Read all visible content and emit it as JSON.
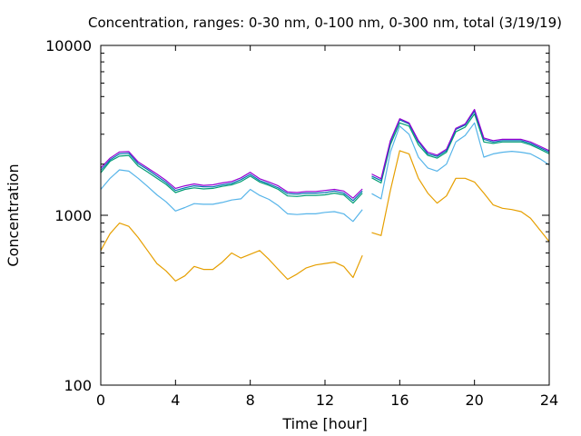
{
  "chart_data": {
    "type": "line",
    "title": "Concentration, ranges: 0-30 nm, 0-100 nm, 0-300 nm, total (3/19/19)",
    "xlabel": "Time [hour]",
    "ylabel": "Concentration",
    "xlim": [
      0,
      24
    ],
    "ylim": [
      100,
      10000
    ],
    "yscale": "log",
    "grid": false,
    "legend": "none",
    "x_ticks": [
      0,
      4,
      8,
      12,
      16,
      20,
      24
    ],
    "x_tick_labels": [
      "0",
      "4",
      "8",
      "12",
      "16",
      "20",
      "24"
    ],
    "y_ticks": [
      100,
      1000,
      10000
    ],
    "y_tick_labels": [
      "100",
      "1000",
      "10000"
    ],
    "gap": [
      14.1,
      14.5
    ],
    "x": [
      0,
      0.5,
      1,
      1.5,
      2,
      2.5,
      3,
      3.5,
      4,
      4.5,
      5,
      5.5,
      6,
      6.5,
      7,
      7.5,
      8,
      8.5,
      9,
      9.5,
      10,
      10.5,
      11,
      11.5,
      12,
      12.5,
      13,
      13.5,
      14,
      14.5,
      15,
      15.5,
      16,
      16.5,
      17,
      17.5,
      18,
      18.5,
      19,
      19.5,
      20,
      20.5,
      21,
      21.5,
      22,
      22.5,
      23,
      23.5,
      24
    ],
    "series": [
      {
        "color": "#e69f00",
        "values": [
          620,
          780,
          900,
          860,
          740,
          620,
          520,
          470,
          410,
          440,
          500,
          480,
          480,
          530,
          600,
          560,
          590,
          620,
          550,
          480,
          420,
          450,
          490,
          510,
          520,
          530,
          500,
          430,
          580,
          790,
          760,
          1400,
          2400,
          2300,
          1650,
          1350,
          1180,
          1300,
          1650,
          1650,
          1570,
          1350,
          1150,
          1100,
          1080,
          1050,
          960,
          820,
          700
        ]
      },
      {
        "color": "#56b4e9",
        "values": [
          1420,
          1650,
          1850,
          1820,
          1650,
          1480,
          1320,
          1200,
          1060,
          1110,
          1170,
          1160,
          1160,
          1190,
          1230,
          1250,
          1420,
          1310,
          1240,
          1140,
          1020,
          1010,
          1020,
          1020,
          1040,
          1050,
          1020,
          920,
          1080,
          1340,
          1250,
          2350,
          3350,
          3000,
          2200,
          1900,
          1820,
          2000,
          2700,
          2950,
          3500,
          2200,
          2300,
          2350,
          2380,
          2350,
          2300,
          2150,
          1980
        ]
      },
      {
        "color": "#009e73",
        "values": [
          1780,
          2080,
          2230,
          2250,
          1950,
          1800,
          1650,
          1520,
          1360,
          1420,
          1450,
          1430,
          1440,
          1480,
          1510,
          1580,
          1700,
          1570,
          1500,
          1420,
          1300,
          1290,
          1310,
          1310,
          1320,
          1350,
          1320,
          1180,
          1350,
          1660,
          1550,
          2600,
          3500,
          3350,
          2600,
          2250,
          2170,
          2350,
          3100,
          3300,
          3950,
          2700,
          2650,
          2700,
          2700,
          2700,
          2600,
          2450,
          2300
        ]
      },
      {
        "color": "#0072b2",
        "values": [
          1840,
          2120,
          2300,
          2320,
          2010,
          1860,
          1700,
          1560,
          1400,
          1450,
          1490,
          1470,
          1470,
          1510,
          1540,
          1620,
          1740,
          1600,
          1530,
          1450,
          1340,
          1330,
          1350,
          1350,
          1360,
          1390,
          1350,
          1220,
          1390,
          1700,
          1600,
          2700,
          3650,
          3450,
          2700,
          2300,
          2220,
          2400,
          3200,
          3400,
          4100,
          2800,
          2700,
          2750,
          2750,
          2750,
          2650,
          2500,
          2350
        ]
      },
      {
        "color": "#9400d3",
        "values": [
          1900,
          2170,
          2360,
          2370,
          2060,
          1900,
          1750,
          1600,
          1440,
          1490,
          1530,
          1500,
          1510,
          1550,
          1580,
          1660,
          1790,
          1640,
          1570,
          1490,
          1370,
          1360,
          1380,
          1380,
          1400,
          1420,
          1390,
          1260,
          1430,
          1750,
          1640,
          2750,
          3700,
          3500,
          2750,
          2350,
          2260,
          2450,
          3250,
          3450,
          4200,
          2850,
          2750,
          2800,
          2800,
          2800,
          2700,
          2550,
          2400
        ]
      }
    ]
  }
}
